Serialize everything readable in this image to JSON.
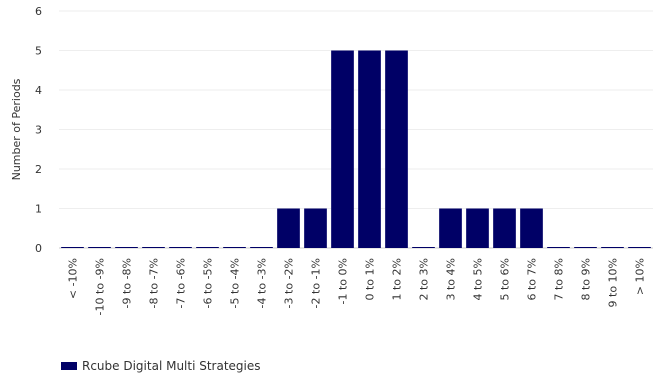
{
  "chart_data": {
    "type": "bar",
    "ylabel": "Number of Periods",
    "xlabel": "",
    "ylim": [
      0,
      6
    ],
    "yticks": [
      0,
      1,
      2,
      3,
      4,
      5,
      6
    ],
    "grid": true,
    "legend_position": "bottom-left",
    "categories": [
      "< -10%",
      "-10 to -9%",
      "-9 to -8%",
      "-8 to -7%",
      "-7 to -6%",
      "-6 to -5%",
      "-5 to -4%",
      "-4 to -3%",
      "-3 to -2%",
      "-2 to -1%",
      "-1 to 0%",
      "0 to 1%",
      "1 to 2%",
      "2 to 3%",
      "3 to 4%",
      "4 to 5%",
      "5 to 6%",
      "6 to 7%",
      "7 to 8%",
      "8 to 9%",
      "9 to 10%",
      "> 10%"
    ],
    "series": [
      {
        "name": "Rcube Digital Multi Strategies",
        "color": "#000066",
        "values": [
          0,
          0,
          0,
          0,
          0,
          0,
          0,
          0,
          1,
          1,
          5,
          5,
          5,
          0,
          1,
          1,
          1,
          1,
          0,
          0,
          0,
          0
        ]
      }
    ]
  }
}
